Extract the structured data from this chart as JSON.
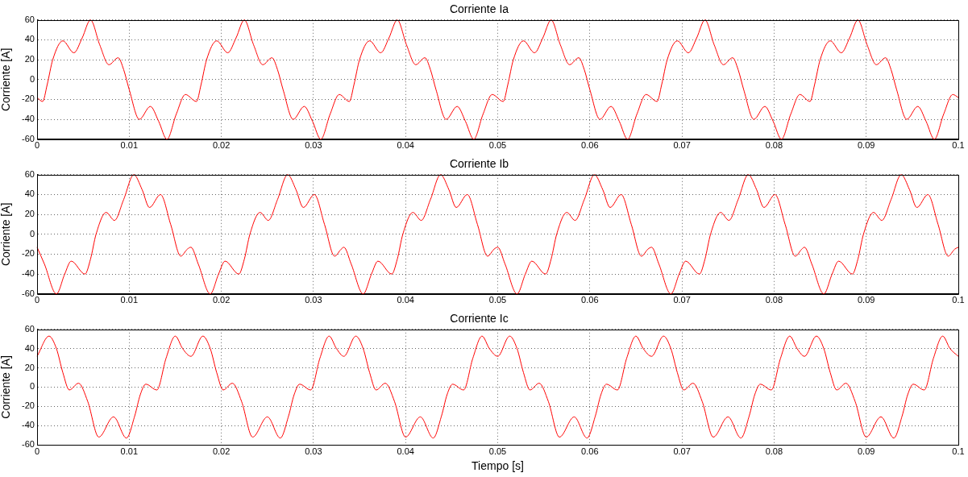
{
  "chart_data": [
    {
      "type": "line",
      "title": "Corriente Ia",
      "ylabel": "Corriente [A]",
      "color": "#ff0000",
      "xlim": [
        0,
        0.1
      ],
      "xticks": [
        0,
        0.01,
        0.02,
        0.03,
        0.04,
        0.05,
        0.06,
        0.07,
        0.08,
        0.09,
        0.1
      ],
      "ylim": [
        -60,
        60
      ],
      "yticks": [
        -60,
        -40,
        -20,
        0,
        20,
        40,
        60
      ],
      "grid": true,
      "x": [
        0,
        0.0006,
        0.0011,
        0.0017,
        0.0028,
        0.004,
        0.0049,
        0.0058,
        0.0068,
        0.0078,
        0.0088,
        0.0094,
        0.01,
        0.0111,
        0.0123,
        0.0132,
        0.0141,
        0.0151,
        0.0161,
        0.0173,
        0.0178,
        0.0184,
        0.0195,
        0.0207,
        0.0216,
        0.0225,
        0.0235,
        0.0245,
        0.0255,
        0.0261,
        0.0267,
        0.0278,
        0.029,
        0.0299,
        0.0308,
        0.0318,
        0.0328,
        0.0339,
        0.0344,
        0.035,
        0.0361,
        0.0373,
        0.0382,
        0.0391,
        0.0401,
        0.0411,
        0.0421,
        0.0427,
        0.0433,
        0.0444,
        0.0456,
        0.0465,
        0.0474,
        0.0484,
        0.0494,
        0.0506,
        0.0511,
        0.0517,
        0.0528,
        0.054,
        0.0549,
        0.0558,
        0.0568,
        0.0578,
        0.0588,
        0.0594,
        0.06,
        0.0611,
        0.0623,
        0.0632,
        0.0641,
        0.0651,
        0.0661,
        0.0673,
        0.0678,
        0.0684,
        0.0695,
        0.0707,
        0.0716,
        0.0725,
        0.0735,
        0.0745,
        0.0755,
        0.0761,
        0.0767,
        0.0778,
        0.079,
        0.0799,
        0.0808,
        0.0818,
        0.0828,
        0.0839,
        0.0844,
        0.085,
        0.0861,
        0.0873,
        0.0882,
        0.0891,
        0.0901,
        0.0911,
        0.0921,
        0.0927,
        0.0933,
        0.0944,
        0.0956,
        0.0965,
        0.0974,
        0.0984,
        0.0994,
        0.1
      ],
      "values": [
        -18,
        -22,
        -5,
        20,
        39,
        27,
        42,
        60,
        35,
        15,
        22,
        10,
        -10,
        -40,
        -27,
        -42,
        -60,
        -35,
        -15,
        -22,
        -5,
        20,
        39,
        27,
        42,
        60,
        35,
        15,
        22,
        10,
        -10,
        -40,
        -27,
        -42,
        -60,
        -35,
        -15,
        -22,
        -5,
        20,
        39,
        27,
        42,
        60,
        35,
        15,
        22,
        10,
        -10,
        -40,
        -27,
        -42,
        -60,
        -35,
        -15,
        -22,
        -5,
        20,
        39,
        27,
        42,
        60,
        35,
        15,
        22,
        10,
        -10,
        -40,
        -27,
        -42,
        -60,
        -35,
        -15,
        -22,
        -5,
        20,
        39,
        27,
        42,
        60,
        35,
        15,
        22,
        10,
        -10,
        -40,
        -27,
        -42,
        -60,
        -35,
        -15,
        -22,
        -5,
        20,
        39,
        27,
        42,
        60,
        35,
        15,
        22,
        10,
        -10,
        -40,
        -27,
        -42,
        -60,
        -35,
        -15,
        -18
      ]
    },
    {
      "type": "line",
      "title": "Corriente Ib",
      "ylabel": "Corriente [A]",
      "color": "#ff0000",
      "xlim": [
        0,
        0.1
      ],
      "xticks": [
        0,
        0.01,
        0.02,
        0.03,
        0.04,
        0.05,
        0.06,
        0.07,
        0.08,
        0.09,
        0.1
      ],
      "ylim": [
        -60,
        60
      ],
      "yticks": [
        -60,
        -40,
        -20,
        0,
        20,
        40,
        60
      ],
      "grid": true,
      "x": [
        0,
        0.0008,
        0.0021,
        0.003,
        0.0037,
        0.0052,
        0.0058,
        0.0064,
        0.0075,
        0.0084,
        0.0094,
        0.0105,
        0.0114,
        0.0122,
        0.0134,
        0.0145,
        0.0156,
        0.0163,
        0.0167,
        0.0175,
        0.0188,
        0.0197,
        0.0204,
        0.0219,
        0.0225,
        0.0231,
        0.0242,
        0.0251,
        0.0261,
        0.0272,
        0.0281,
        0.0289,
        0.0301,
        0.0312,
        0.0323,
        0.033,
        0.0333,
        0.0341,
        0.0354,
        0.0363,
        0.037,
        0.0385,
        0.0391,
        0.0397,
        0.0408,
        0.0417,
        0.0427,
        0.0438,
        0.0447,
        0.0455,
        0.0467,
        0.0478,
        0.0489,
        0.0496,
        0.05,
        0.0508,
        0.0521,
        0.053,
        0.0537,
        0.0552,
        0.0558,
        0.0564,
        0.0575,
        0.0584,
        0.0594,
        0.0605,
        0.0614,
        0.0622,
        0.0634,
        0.0645,
        0.0656,
        0.0663,
        0.0667,
        0.0675,
        0.0688,
        0.0697,
        0.0704,
        0.0719,
        0.0725,
        0.0731,
        0.0742,
        0.0751,
        0.0761,
        0.0772,
        0.0781,
        0.0789,
        0.0801,
        0.0812,
        0.0823,
        0.083,
        0.0833,
        0.0841,
        0.0854,
        0.0863,
        0.087,
        0.0885,
        0.0891,
        0.0897,
        0.0908,
        0.0917,
        0.0927,
        0.0938,
        0.0947,
        0.0955,
        0.0967,
        0.0978,
        0.0989,
        0.0996,
        0.1
      ],
      "values": [
        -13,
        -30,
        -60,
        -40,
        -27,
        -40,
        -25,
        0,
        22,
        14,
        35,
        60,
        45,
        27,
        40,
        10,
        -22,
        -15,
        -13,
        -30,
        -60,
        -40,
        -27,
        -40,
        -25,
        0,
        22,
        14,
        35,
        60,
        45,
        27,
        40,
        10,
        -22,
        -15,
        -13,
        -30,
        -60,
        -40,
        -27,
        -40,
        -25,
        0,
        22,
        14,
        35,
        60,
        45,
        27,
        40,
        10,
        -22,
        -15,
        -13,
        -30,
        -60,
        -40,
        -27,
        -40,
        -25,
        0,
        22,
        14,
        35,
        60,
        45,
        27,
        40,
        10,
        -22,
        -15,
        -13,
        -30,
        -60,
        -40,
        -27,
        -40,
        -25,
        0,
        22,
        14,
        35,
        60,
        45,
        27,
        40,
        10,
        -22,
        -15,
        -13,
        -30,
        -60,
        -40,
        -27,
        -40,
        -25,
        0,
        22,
        14,
        35,
        60,
        45,
        27,
        40,
        10,
        -22,
        -15,
        -13
      ]
    },
    {
      "type": "line",
      "title": "Corriente Ic",
      "ylabel": "Corriente [A]",
      "xlabel": "Tiempo [s]",
      "color": "#ff0000",
      "xlim": [
        0,
        0.1
      ],
      "xticks": [
        0,
        0.01,
        0.02,
        0.03,
        0.04,
        0.05,
        0.06,
        0.07,
        0.08,
        0.09,
        0.1
      ],
      "ylim": [
        -60,
        60
      ],
      "yticks": [
        -60,
        -40,
        -20,
        0,
        20,
        40,
        60
      ],
      "grid": true,
      "x": [
        0,
        0.0013,
        0.0021,
        0.0028,
        0.0035,
        0.0045,
        0.0055,
        0.0067,
        0.0083,
        0.0097,
        0.0106,
        0.0112,
        0.0118,
        0.013,
        0.014,
        0.015,
        0.0158,
        0.0167,
        0.018,
        0.0188,
        0.0195,
        0.0202,
        0.0212,
        0.0222,
        0.0234,
        0.025,
        0.0264,
        0.0273,
        0.0279,
        0.0285,
        0.0297,
        0.0307,
        0.0317,
        0.0325,
        0.0333,
        0.0346,
        0.0354,
        0.0361,
        0.0368,
        0.0378,
        0.0388,
        0.04,
        0.0416,
        0.043,
        0.0439,
        0.0445,
        0.0451,
        0.0463,
        0.0473,
        0.0483,
        0.0491,
        0.05,
        0.0513,
        0.0521,
        0.0528,
        0.0535,
        0.0545,
        0.0555,
        0.0567,
        0.0583,
        0.0597,
        0.0606,
        0.0612,
        0.0618,
        0.063,
        0.064,
        0.065,
        0.0658,
        0.0667,
        0.068,
        0.0688,
        0.0695,
        0.0702,
        0.0712,
        0.0722,
        0.0734,
        0.075,
        0.0764,
        0.0773,
        0.0779,
        0.0785,
        0.0797,
        0.0807,
        0.0817,
        0.0825,
        0.0833,
        0.0846,
        0.0854,
        0.0861,
        0.0868,
        0.0878,
        0.0888,
        0.09,
        0.0916,
        0.093,
        0.0939,
        0.0945,
        0.0951,
        0.0963,
        0.0973,
        0.0983,
        0.0991,
        0.1
      ],
      "values": [
        32,
        53,
        40,
        15,
        -3,
        4,
        -15,
        -52,
        -31,
        -53,
        -30,
        -8,
        3,
        -3,
        30,
        53,
        40,
        32,
        53,
        40,
        15,
        -3,
        4,
        -15,
        -52,
        -31,
        -53,
        -30,
        -8,
        3,
        -3,
        30,
        53,
        40,
        32,
        53,
        40,
        15,
        -3,
        4,
        -15,
        -52,
        -31,
        -53,
        -30,
        -8,
        3,
        -3,
        30,
        53,
        40,
        32,
        53,
        40,
        15,
        -3,
        4,
        -15,
        -52,
        -31,
        -53,
        -30,
        -8,
        3,
        -3,
        30,
        53,
        40,
        32,
        53,
        40,
        15,
        -3,
        4,
        -15,
        -52,
        -31,
        -53,
        -30,
        -8,
        3,
        -3,
        30,
        53,
        40,
        32,
        53,
        40,
        15,
        -3,
        4,
        -15,
        -52,
        -31,
        -53,
        -30,
        -8,
        3,
        -3,
        30,
        53,
        40,
        32
      ]
    }
  ]
}
